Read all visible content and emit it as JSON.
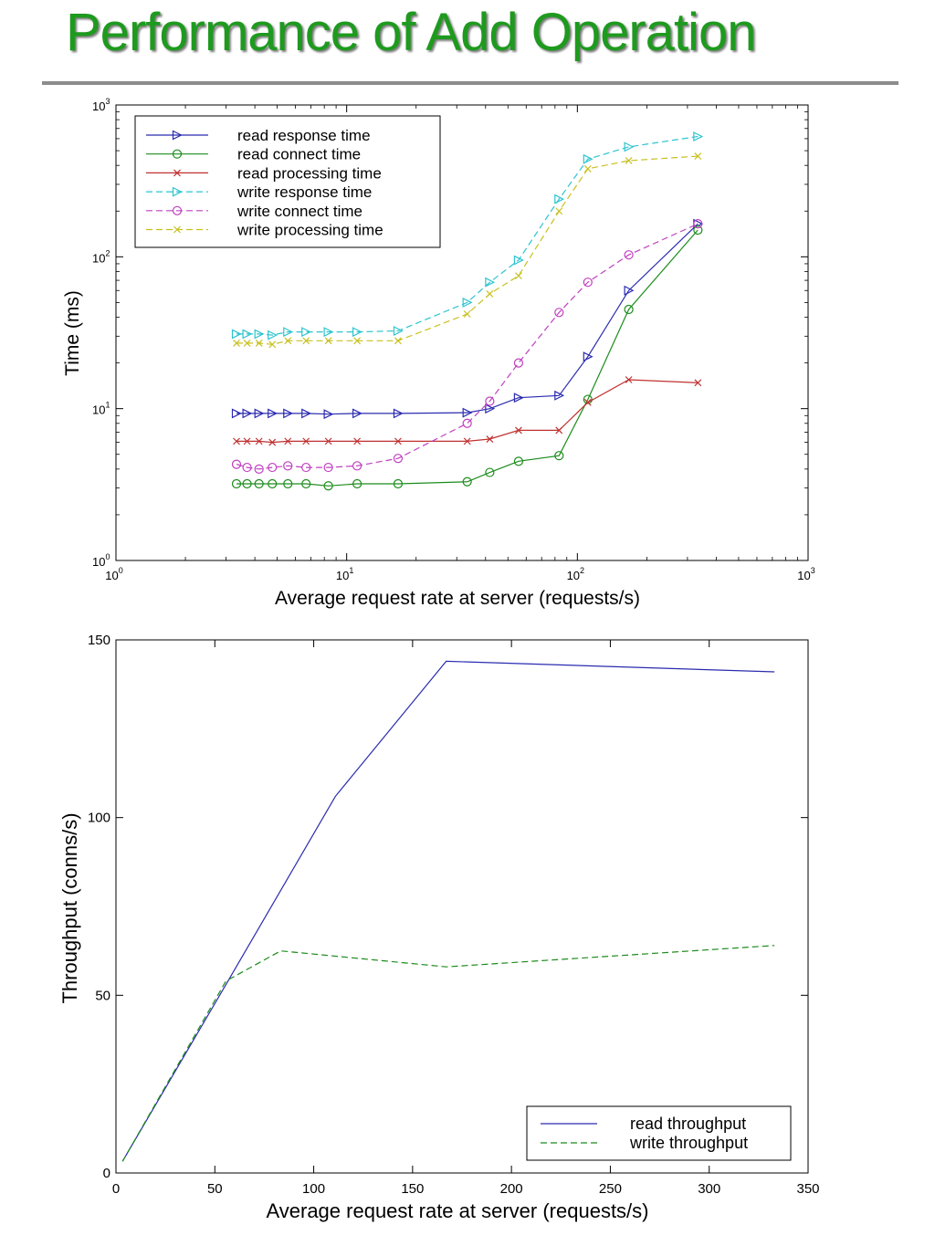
{
  "slide_title": "Performance of Add Operation",
  "chart_data": [
    {
      "type": "line",
      "x_scale": "log",
      "y_scale": "log",
      "xlim": [
        1,
        1000
      ],
      "ylim": [
        1,
        1000
      ],
      "xlabel": "Average request rate at server (requests/s)",
      "ylabel": "Time (ms)",
      "x_ticks": [
        {
          "base": "10",
          "exp": "0",
          "value": 1
        },
        {
          "base": "10",
          "exp": "1",
          "value": 10
        },
        {
          "base": "10",
          "exp": "2",
          "value": 100
        },
        {
          "base": "10",
          "exp": "3",
          "value": 1000
        }
      ],
      "y_ticks": [
        {
          "base": "10",
          "exp": "0",
          "value": 1
        },
        {
          "base": "10",
          "exp": "1",
          "value": 10
        },
        {
          "base": "10",
          "exp": "2",
          "value": 100
        },
        {
          "base": "10",
          "exp": "3",
          "value": 1000
        }
      ],
      "legend_position": "top-left",
      "series": [
        {
          "name": "read response time",
          "color": "#2b2bb0",
          "dash": "solid",
          "marker": "triangle-right",
          "x": [
            3.33,
            3.7,
            4.17,
            4.76,
            5.56,
            6.67,
            8.33,
            11.1,
            16.7,
            33.3,
            41.7,
            55.6,
            83.3,
            111,
            167,
            333
          ],
          "y": [
            9.3,
            9.3,
            9.3,
            9.3,
            9.3,
            9.3,
            9.2,
            9.3,
            9.3,
            9.4,
            10,
            11.8,
            12.2,
            22,
            60,
            165
          ]
        },
        {
          "name": "read connect time",
          "color": "#1c8c1c",
          "dash": "solid",
          "marker": "circle",
          "x": [
            3.33,
            3.7,
            4.17,
            4.76,
            5.56,
            6.67,
            8.33,
            11.1,
            16.7,
            33.3,
            41.7,
            55.6,
            83.3,
            111,
            167,
            333
          ],
          "y": [
            3.2,
            3.2,
            3.2,
            3.2,
            3.2,
            3.2,
            3.1,
            3.2,
            3.2,
            3.3,
            3.8,
            4.5,
            4.9,
            11.5,
            45,
            150
          ]
        },
        {
          "name": "read processing time",
          "color": "#c03030",
          "dash": "solid",
          "marker": "x",
          "x": [
            3.33,
            3.7,
            4.17,
            4.76,
            5.56,
            6.67,
            8.33,
            11.1,
            16.7,
            33.3,
            41.7,
            55.6,
            83.3,
            111,
            167,
            333
          ],
          "y": [
            6.1,
            6.1,
            6.1,
            6.0,
            6.1,
            6.1,
            6.1,
            6.1,
            6.1,
            6.1,
            6.3,
            7.2,
            7.2,
            11,
            15.5,
            14.8
          ]
        },
        {
          "name": "write response time",
          "color": "#2ec4d0",
          "dash": "dashed",
          "marker": "triangle-right",
          "x": [
            3.33,
            3.7,
            4.17,
            4.76,
            5.56,
            6.67,
            8.33,
            11.1,
            16.7,
            33.3,
            41.7,
            55.6,
            83.3,
            111,
            167,
            333
          ],
          "y": [
            31,
            31,
            31,
            30.5,
            32,
            32,
            32,
            32,
            32.5,
            50,
            68,
            95,
            240,
            440,
            530,
            620
          ]
        },
        {
          "name": "write connect time",
          "color": "#c040c0",
          "dash": "dashed",
          "marker": "circle",
          "x": [
            3.33,
            3.7,
            4.17,
            4.76,
            5.56,
            6.67,
            8.33,
            11.1,
            16.7,
            33.3,
            41.7,
            55.6,
            83.3,
            111,
            167,
            333
          ],
          "y": [
            4.3,
            4.1,
            4.0,
            4.1,
            4.2,
            4.1,
            4.1,
            4.2,
            4.7,
            8,
            11.2,
            20,
            43,
            68,
            103,
            165
          ]
        },
        {
          "name": "write processing time",
          "color": "#c8c020",
          "dash": "dashed",
          "marker": "x",
          "x": [
            3.33,
            3.7,
            4.17,
            4.76,
            5.56,
            6.67,
            8.33,
            11.1,
            16.7,
            33.3,
            41.7,
            55.6,
            83.3,
            111,
            167,
            333
          ],
          "y": [
            27,
            27,
            27,
            26.5,
            28,
            28,
            28,
            28,
            28,
            42,
            57,
            75,
            200,
            380,
            430,
            460
          ]
        }
      ]
    },
    {
      "type": "line",
      "xlim": [
        0,
        350
      ],
      "ylim": [
        0,
        150
      ],
      "xlabel": "Average request rate at server (requests/s)",
      "ylabel": "Throughput (conns/s)",
      "x_ticks": [
        "0",
        "50",
        "100",
        "150",
        "200",
        "250",
        "300",
        "350"
      ],
      "y_ticks": [
        "0",
        "50",
        "100",
        "150"
      ],
      "legend_position": "bottom-right",
      "series": [
        {
          "name": "read throughput",
          "color": "#2b2bb0",
          "dash": "solid",
          "x": [
            3.33,
            55.6,
            111,
            167,
            333
          ],
          "y": [
            3.3,
            53,
            106,
            144,
            141
          ]
        },
        {
          "name": "write throughput",
          "color": "#1c8c1c",
          "dash": "dashed",
          "x": [
            3.33,
            55.6,
            83.3,
            167,
            333
          ],
          "y": [
            3.3,
            54,
            62.5,
            58,
            64
          ]
        }
      ]
    }
  ]
}
